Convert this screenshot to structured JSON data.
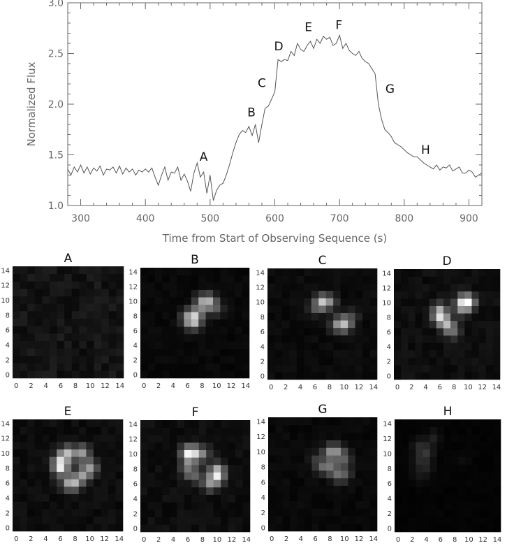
{
  "chart_data": [
    {
      "type": "line",
      "xlabel": "Time from Start of Observing Sequence (s)",
      "ylabel": "Normalized Flux",
      "xlim": [
        280,
        920
      ],
      "ylim": [
        1.0,
        3.0
      ],
      "x_ticks": [
        "300",
        "400",
        "500",
        "600",
        "700",
        "800",
        "900"
      ],
      "y_ticks": [
        "1.0",
        "1.5",
        "2.0",
        "2.5",
        "3.0"
      ],
      "grid": false,
      "series": [
        {
          "x": [
            280,
            285,
            290,
            295,
            300,
            305,
            310,
            315,
            320,
            325,
            330,
            335,
            340,
            345,
            350,
            355,
            360,
            365,
            370,
            375,
            380,
            385,
            390,
            395,
            400,
            405,
            410,
            415,
            420,
            425,
            430,
            435,
            440,
            445,
            450,
            455,
            460,
            465,
            470,
            475,
            480,
            485,
            490,
            495,
            500,
            505,
            510,
            515,
            520,
            525,
            530,
            535,
            540,
            545,
            550,
            555,
            560,
            565,
            570,
            575,
            580,
            585,
            590,
            595,
            600,
            605,
            610,
            615,
            620,
            625,
            630,
            635,
            640,
            645,
            650,
            655,
            660,
            665,
            670,
            675,
            680,
            685,
            690,
            695,
            700,
            705,
            710,
            715,
            720,
            725,
            730,
            735,
            740,
            745,
            750,
            755,
            760,
            765,
            770,
            775,
            780,
            785,
            790,
            795,
            800,
            805,
            810,
            815,
            820,
            825,
            830,
            835,
            840,
            845,
            850,
            855,
            860,
            865,
            870,
            875,
            880,
            885,
            890,
            895,
            900,
            905,
            910,
            915,
            920
          ],
          "y": [
            1.36,
            1.3,
            1.38,
            1.33,
            1.4,
            1.32,
            1.38,
            1.31,
            1.37,
            1.34,
            1.39,
            1.3,
            1.36,
            1.35,
            1.38,
            1.32,
            1.39,
            1.31,
            1.37,
            1.33,
            1.36,
            1.3,
            1.35,
            1.33,
            1.36,
            1.33,
            1.37,
            1.28,
            1.2,
            1.3,
            1.38,
            1.25,
            1.33,
            1.32,
            1.38,
            1.25,
            1.31,
            1.24,
            1.14,
            1.32,
            1.42,
            1.28,
            1.33,
            1.12,
            1.3,
            1.05,
            1.15,
            1.2,
            1.22,
            1.3,
            1.4,
            1.52,
            1.62,
            1.7,
            1.74,
            1.72,
            1.78,
            1.69,
            1.8,
            1.62,
            1.8,
            1.96,
            1.98,
            2.05,
            2.12,
            2.44,
            2.42,
            2.44,
            2.43,
            2.52,
            2.48,
            2.6,
            2.54,
            2.52,
            2.58,
            2.62,
            2.55,
            2.64,
            2.6,
            2.67,
            2.64,
            2.66,
            2.58,
            2.6,
            2.68,
            2.55,
            2.6,
            2.53,
            2.5,
            2.48,
            2.52,
            2.45,
            2.42,
            2.4,
            2.35,
            2.3,
            2.0,
            1.85,
            1.75,
            1.72,
            1.68,
            1.62,
            1.6,
            1.58,
            1.55,
            1.52,
            1.5,
            1.48,
            1.48,
            1.45,
            1.42,
            1.4,
            1.38,
            1.36,
            1.4,
            1.35,
            1.38,
            1.37,
            1.4,
            1.34,
            1.36,
            1.38,
            1.32,
            1.32,
            1.35,
            1.33,
            1.28,
            1.3,
            1.32
          ]
        }
      ],
      "annotations": [
        {
          "text": "A",
          "x": 490,
          "y": 1.44
        },
        {
          "text": "B",
          "x": 564,
          "y": 1.88
        },
        {
          "text": "C",
          "x": 580,
          "y": 2.17
        },
        {
          "text": "D",
          "x": 606,
          "y": 2.53
        },
        {
          "text": "E",
          "x": 652,
          "y": 2.72
        },
        {
          "text": "F",
          "x": 699,
          "y": 2.74
        },
        {
          "text": "G",
          "x": 778,
          "y": 2.11
        },
        {
          "text": "H",
          "x": 833,
          "y": 1.51
        }
      ]
    },
    {
      "type": "heatmap",
      "panels": [
        {
          "title": "A",
          "peak": 0.12,
          "spots": []
        },
        {
          "title": "B",
          "peak": 0.82,
          "spots": [
            [
              7,
              8,
              1.0
            ],
            [
              9,
              10,
              0.95
            ],
            [
              8,
              10,
              0.7
            ],
            [
              7,
              7,
              0.8
            ],
            [
              10,
              9,
              0.55
            ],
            [
              6,
              8,
              0.55
            ],
            [
              8,
              9,
              0.45
            ],
            [
              6,
              7,
              0.4
            ]
          ]
        },
        {
          "title": "C",
          "peak": 0.78,
          "spots": [
            [
              7,
              10,
              1.0
            ],
            [
              10,
              7,
              0.95
            ],
            [
              8,
              10,
              0.5
            ],
            [
              9,
              7,
              0.55
            ],
            [
              6,
              9,
              0.35
            ],
            [
              11,
              8,
              0.3
            ]
          ]
        },
        {
          "title": "D",
          "peak": 1.0,
          "spots": [
            [
              10,
              10,
              1.0
            ],
            [
              9,
              10,
              0.55
            ],
            [
              6,
              8,
              0.75
            ],
            [
              7,
              7,
              0.7
            ],
            [
              6,
              9,
              0.5
            ],
            [
              8,
              6,
              0.4
            ],
            [
              9,
              9,
              0.3
            ]
          ]
        },
        {
          "title": "E",
          "peak": 0.92,
          "spots": [
            [
              6,
              8,
              0.95
            ],
            [
              7,
              10,
              0.85
            ],
            [
              9,
              10,
              0.75
            ],
            [
              10,
              8,
              0.7
            ],
            [
              8,
              6,
              0.6
            ],
            [
              7,
              6,
              0.55
            ],
            [
              9,
              7,
              0.55
            ],
            [
              6,
              9,
              0.6
            ]
          ]
        },
        {
          "title": "F",
          "peak": 0.96,
          "spots": [
            [
              6,
              10,
              0.95
            ],
            [
              10,
              7,
              0.95
            ],
            [
              7,
              10,
              0.6
            ],
            [
              9,
              6,
              0.55
            ],
            [
              6,
              8,
              0.5
            ],
            [
              10,
              8,
              0.5
            ],
            [
              8,
              10,
              0.4
            ],
            [
              7,
              7,
              0.4
            ]
          ]
        },
        {
          "title": "G",
          "peak": 0.55,
          "spots": [
            [
              8,
              10,
              0.75
            ],
            [
              9,
              10,
              0.7
            ],
            [
              10,
              9,
              0.6
            ],
            [
              8,
              8,
              0.6
            ],
            [
              7,
              8,
              0.5
            ],
            [
              9,
              7,
              0.55
            ],
            [
              10,
              7,
              0.5
            ],
            [
              6,
              9,
              0.3
            ]
          ]
        },
        {
          "title": "H",
          "peak": 0.22,
          "spots": [
            [
              4,
              10,
              0.8
            ],
            [
              3,
              11,
              0.6
            ],
            [
              5,
              12,
              0.5
            ],
            [
              3,
              9,
              0.5
            ],
            [
              4,
              8,
              0.4
            ],
            [
              9,
              9,
              0.2
            ],
            [
              3,
              7,
              0.3
            ]
          ]
        }
      ],
      "x_ticks": [
        "0",
        "2",
        "4",
        "6",
        "8",
        "10",
        "12",
        "14"
      ],
      "y_ticks": [
        "0",
        "2",
        "4",
        "6",
        "8",
        "10",
        "12",
        "14"
      ]
    }
  ]
}
